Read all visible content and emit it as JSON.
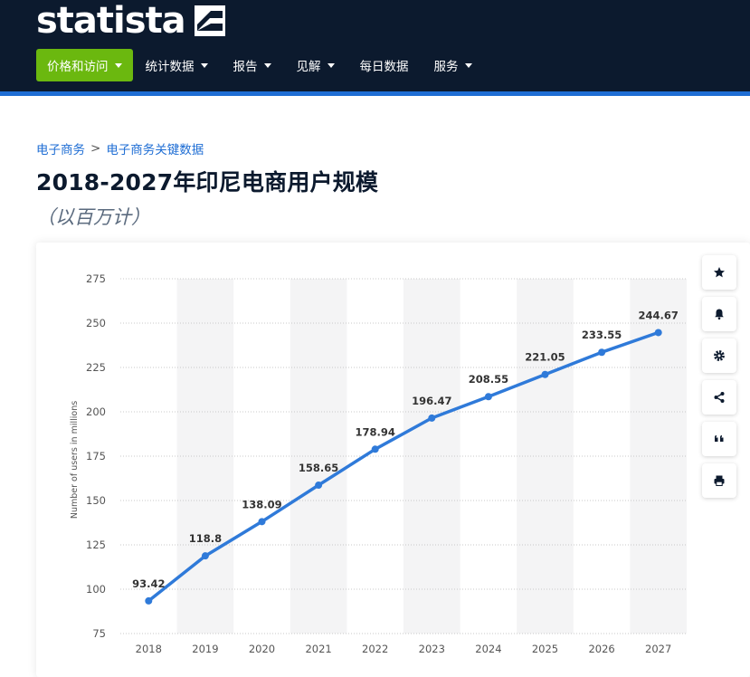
{
  "brand": {
    "name": "statista"
  },
  "nav": {
    "items": [
      {
        "label": "价格和访问",
        "active": true,
        "dropdown": true
      },
      {
        "label": "统计数据",
        "active": false,
        "dropdown": true
      },
      {
        "label": "报告",
        "active": false,
        "dropdown": true
      },
      {
        "label": "见解",
        "active": false,
        "dropdown": true
      },
      {
        "label": "每日数据",
        "active": false,
        "dropdown": false
      },
      {
        "label": "服务",
        "active": false,
        "dropdown": true
      }
    ]
  },
  "breadcrumb": {
    "items": [
      "电子商务",
      "电子商务关键数据"
    ],
    "separator": ">"
  },
  "page": {
    "title": "2018-2027年印尼电商用户规模",
    "subtitle": "（以百万计）"
  },
  "toolbar": {
    "icons": [
      "star-icon",
      "bell-icon",
      "gear-icon",
      "share-icon",
      "quote-icon",
      "print-icon"
    ]
  },
  "colors": {
    "header_bg": "#0c1a2e",
    "accent_blue": "#1f6ed4",
    "active_green": "#6bb80f",
    "line": "#2f7ad9"
  },
  "chart_data": {
    "type": "line",
    "x": [
      "2018",
      "2019",
      "2020",
      "2021",
      "2022",
      "2023",
      "2024",
      "2025",
      "2026",
      "2027"
    ],
    "series": [
      {
        "values": [
          93.42,
          118.8,
          138.09,
          158.65,
          178.94,
          196.47,
          208.55,
          221.05,
          233.55,
          244.67
        ]
      }
    ],
    "data_labels": [
      "93.42",
      "118.8",
      "138.09",
      "158.65",
      "178.94",
      "196.47",
      "208.55",
      "221.05",
      "233.55",
      "244.67"
    ],
    "ylabel": "Number of users in millions",
    "xlabel": "",
    "ylim": [
      75,
      275
    ],
    "yticks": [
      "75",
      "100",
      "125",
      "150",
      "175",
      "200",
      "225",
      "250",
      "275"
    ],
    "grid": true,
    "alternating_column_bands": true
  }
}
